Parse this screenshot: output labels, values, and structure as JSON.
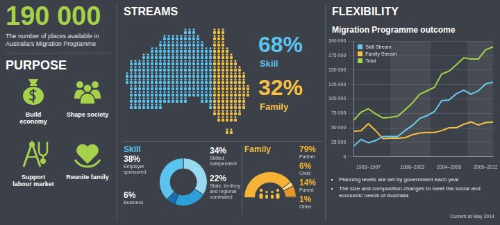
{
  "headline": {
    "number": "190 000",
    "text": "The number of places available in Australia's Migration Programme"
  },
  "purpose": {
    "title": "PURPOSE",
    "items": [
      "Build economy",
      "Shape society",
      "Support labour market",
      "Reunite family"
    ]
  },
  "streams": {
    "title": "STREAMS",
    "items": [
      {
        "name": "Skill",
        "value": 68,
        "label": "68%",
        "color": "#5cc3ee"
      },
      {
        "name": "Family",
        "value": 32,
        "label": "32%",
        "color": "#f5c143"
      }
    ]
  },
  "flexibility": {
    "title": "FLEXIBILITY",
    "notes": [
      "Planning levels are set by government each year",
      "The size and composition changes to meet the social and economic needs of Australia"
    ],
    "footnote": "Current at May 2014"
  },
  "chart_data": [
    {
      "type": "line",
      "title": "Migration Programme outcome",
      "categories": [
        null,
        null,
        "1993–1997",
        null,
        null,
        null,
        null,
        null,
        "1998–2003",
        null,
        null,
        null,
        null,
        "2004–2008",
        null,
        null,
        null,
        null,
        "2009–2013",
        null
      ],
      "series": [
        {
          "name": "Skill Stream",
          "color": "#6cc8ee",
          "values": [
            18000,
            30000,
            24000,
            28000,
            35000,
            35000,
            35000,
            45000,
            54000,
            66000,
            71000,
            78000,
            97000,
            98000,
            109000,
            115000,
            108000,
            114000,
            126000,
            129000
          ]
        },
        {
          "name": "Family Stream",
          "color": "#f5c143",
          "values": [
            44000,
            45000,
            57000,
            45000,
            31000,
            32000,
            32000,
            33000,
            38000,
            41000,
            42000,
            42000,
            45000,
            50000,
            50000,
            56000,
            60000,
            55000,
            59000,
            60000
          ]
        },
        {
          "name": "Total",
          "color": "#a6d24b",
          "values": [
            63000,
            77000,
            83000,
            74000,
            67000,
            68000,
            70000,
            81000,
            93000,
            108000,
            114000,
            120000,
            143000,
            148000,
            159000,
            171000,
            169000,
            169000,
            185000,
            190000
          ]
        }
      ],
      "ylim": [
        0,
        200000
      ],
      "yticks": [
        0,
        {
          "value": 25000,
          "label": "25 000"
        },
        {
          "value": 50000,
          "label": "50 000"
        },
        {
          "value": 75000,
          "label": "75 000"
        },
        {
          "value": 100000,
          "label": "100 000"
        },
        {
          "value": 125000,
          "label": "125 000"
        },
        {
          "value": 150000,
          "label": "150 000"
        },
        {
          "value": 175000,
          "label": "175 000"
        },
        {
          "value": 200000,
          "label": "200 000"
        }
      ],
      "grid": true,
      "legend": "top-left"
    },
    {
      "type": "doughnut",
      "title": "Skill",
      "categories": [
        "Skilled Independent",
        "State, territory and regional nominated",
        "Business",
        "Employer sponsored"
      ],
      "values": [
        34,
        22,
        6,
        38
      ],
      "value_labels": [
        "34%",
        "22%",
        "6%",
        "38%"
      ],
      "colors": [
        "#9ad9f2",
        "#2c9fd8",
        "#1b6fb0",
        "#5cc3ee"
      ],
      "data_labels": true
    },
    {
      "type": "doughnut",
      "title": "Family",
      "categories": [
        "Partner",
        "Child",
        "Parent",
        "Other"
      ],
      "values": [
        79,
        6,
        14,
        1
      ],
      "value_labels": [
        "79%",
        "6%",
        "14%",
        "1%"
      ],
      "colors": [
        "#f5b335",
        "#fbd985",
        "#e8962a",
        "#fff0c0"
      ],
      "data_labels": true
    }
  ]
}
